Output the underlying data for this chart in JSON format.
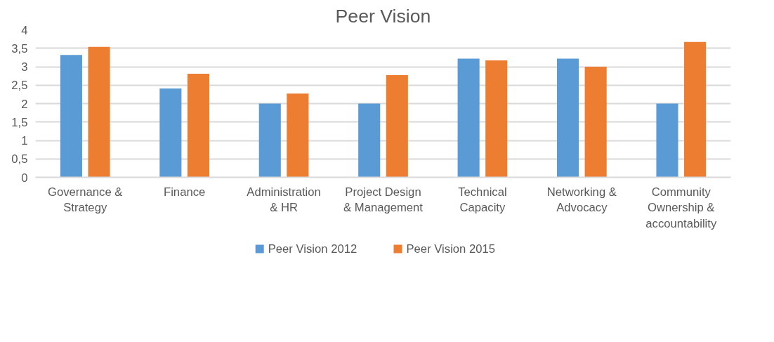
{
  "chart_data": {
    "type": "bar",
    "title": "Peer Vision",
    "categories": [
      "Governance & Strategy",
      "Finance",
      "Administration & HR",
      "Project Design & Management",
      "Technical Capacity",
      "Networking & Advocacy",
      "Community Ownership & accountability"
    ],
    "series": [
      {
        "name": "Peer Vision 2012",
        "color": "#5b9bd5",
        "values": [
          3.32,
          2.41,
          2.0,
          2.0,
          3.22,
          3.22,
          2.0
        ]
      },
      {
        "name": "Peer Vision 2015",
        "color": "#ed7d31",
        "values": [
          3.54,
          2.81,
          2.27,
          2.77,
          3.17,
          3.0,
          3.67
        ]
      }
    ],
    "ylim": [
      0,
      4
    ],
    "yticks": [
      {
        "value": 0,
        "label": "0"
      },
      {
        "value": 0.5,
        "label": "0,5"
      },
      {
        "value": 1,
        "label": "1"
      },
      {
        "value": 1.5,
        "label": "1,5"
      },
      {
        "value": 2,
        "label": "2"
      },
      {
        "value": 2.5,
        "label": "2,5"
      },
      {
        "value": 3,
        "label": "3"
      },
      {
        "value": 3.5,
        "label": "3,5"
      },
      {
        "value": 4,
        "label": "4"
      }
    ],
    "grid": "y",
    "legend": "bottom"
  }
}
